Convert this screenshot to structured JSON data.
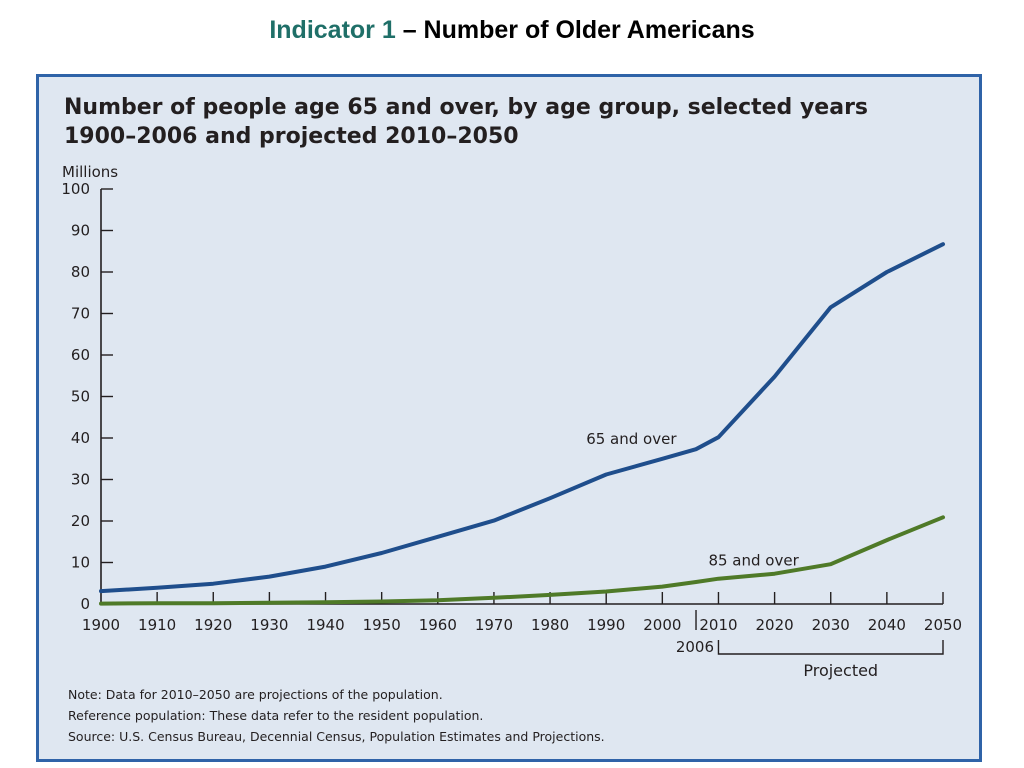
{
  "slide": {
    "title_lead": "Indicator 1",
    "title_rest": " – Number of Older Americans"
  },
  "chart_data": {
    "type": "line",
    "title": "Number of people age 65 and over, by age group, selected years 1900–2006 and projected 2010–2050",
    "ylabel": "Millions",
    "ylim": [
      0,
      100
    ],
    "yticks": [
      0,
      10,
      20,
      30,
      40,
      50,
      60,
      70,
      80,
      90,
      100
    ],
    "xticks": [
      1900,
      1910,
      1920,
      1930,
      1940,
      1950,
      1960,
      1970,
      1980,
      1990,
      2000,
      2010,
      2020,
      2030,
      2040,
      2050
    ],
    "xlim": [
      1900,
      2050
    ],
    "x_extra_label": "2006",
    "projected_label": "Projected",
    "projected_range": [
      2010,
      2050
    ],
    "grid": false,
    "legend": "inline",
    "series": [
      {
        "name": "65 and over",
        "color": "#1f4e8c",
        "x": [
          1900,
          1910,
          1920,
          1930,
          1940,
          1950,
          1960,
          1970,
          1980,
          1990,
          2000,
          2006,
          2010,
          2020,
          2030,
          2040,
          2050
        ],
        "values": [
          3.1,
          3.9,
          4.9,
          6.6,
          9.0,
          12.3,
          16.2,
          20.1,
          25.5,
          31.2,
          35.0,
          37.3,
          40.2,
          54.8,
          71.5,
          80.0,
          86.7
        ]
      },
      {
        "name": "85 and over",
        "color": "#4f7a28",
        "x": [
          1900,
          1910,
          1920,
          1930,
          1940,
          1950,
          1960,
          1970,
          1980,
          1990,
          2000,
          2006,
          2010,
          2020,
          2030,
          2040,
          2050
        ],
        "values": [
          0.1,
          0.2,
          0.2,
          0.3,
          0.4,
          0.6,
          0.9,
          1.5,
          2.2,
          3.0,
          4.2,
          5.3,
          6.1,
          7.3,
          9.6,
          15.4,
          20.9
        ]
      }
    ]
  },
  "notes": [
    "Note:  Data for 2010–2050 are projections of the population.",
    "Reference population: These data refer to the resident population.",
    "Source:  U.S. Census Bureau, Decennial Census,  Population Estimates and Projections."
  ]
}
